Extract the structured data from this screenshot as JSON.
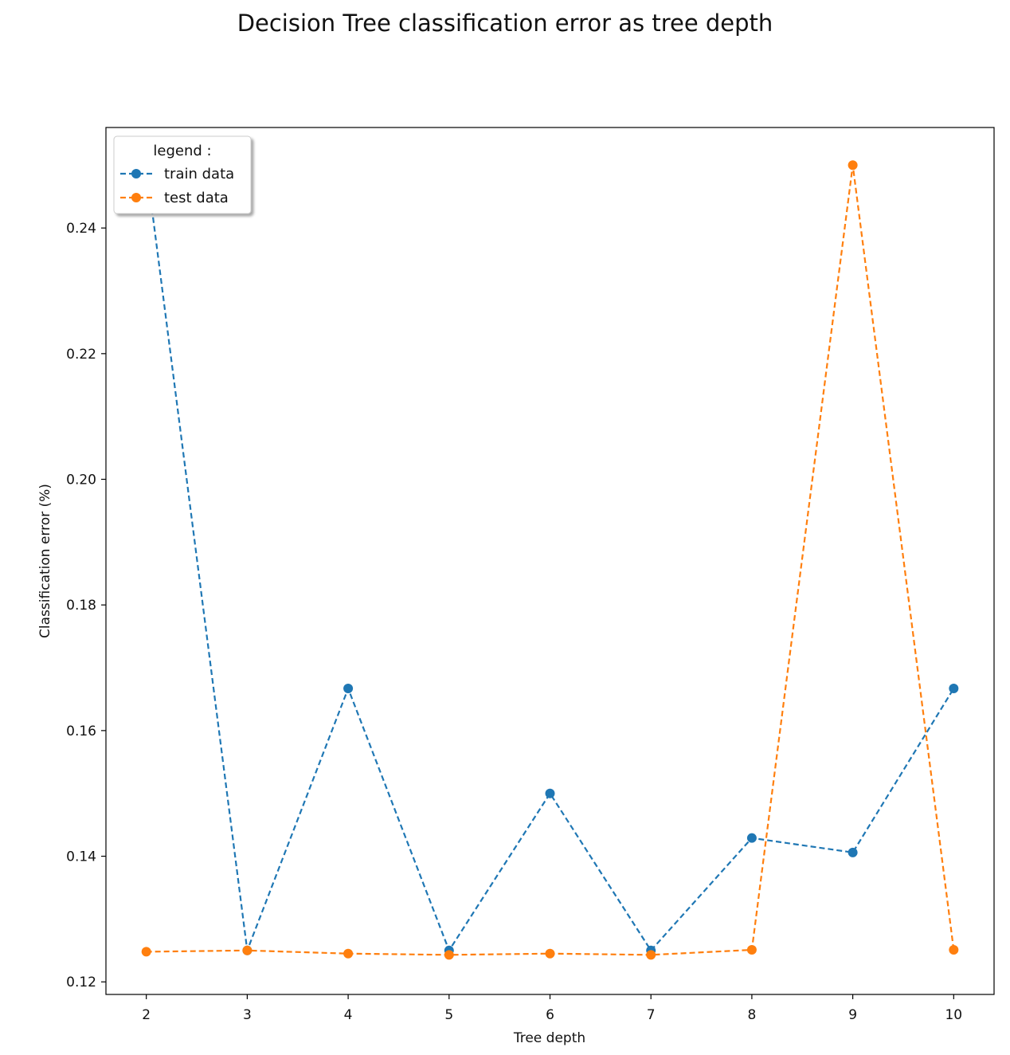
{
  "chart_data": {
    "type": "line",
    "title": "Decision Tree classification error as tree depth",
    "xlabel": "Tree depth",
    "ylabel": "Classification error (%)",
    "x": [
      2,
      3,
      4,
      5,
      6,
      7,
      8,
      9,
      10
    ],
    "xlim": [
      1.6,
      10.4
    ],
    "ylim": [
      0.118,
      0.256
    ],
    "xticks": [
      2,
      3,
      4,
      5,
      6,
      7,
      8,
      9,
      10
    ],
    "yticks": [
      0.12,
      0.14,
      0.16,
      0.18,
      0.2,
      0.22,
      0.24
    ],
    "ytick_labels": [
      "0.12",
      "0.14",
      "0.16",
      "0.18",
      "0.20",
      "0.22",
      "0.24"
    ],
    "grid": false,
    "legend": {
      "title": "legend :",
      "position": "top-left"
    },
    "series": [
      {
        "name": "train data",
        "color": "#1f77b4",
        "linestyle": "dashed",
        "marker": "circle",
        "values": [
          0.25,
          0.125,
          0.1667,
          0.125,
          0.15,
          0.125,
          0.1429,
          0.1406,
          0.1667
        ]
      },
      {
        "name": "test data",
        "color": "#ff7f0e",
        "linestyle": "dashed",
        "marker": "circle",
        "values": [
          0.1248,
          0.125,
          0.1245,
          0.1243,
          0.1245,
          0.1243,
          0.1251,
          0.25,
          0.1251
        ]
      }
    ]
  }
}
